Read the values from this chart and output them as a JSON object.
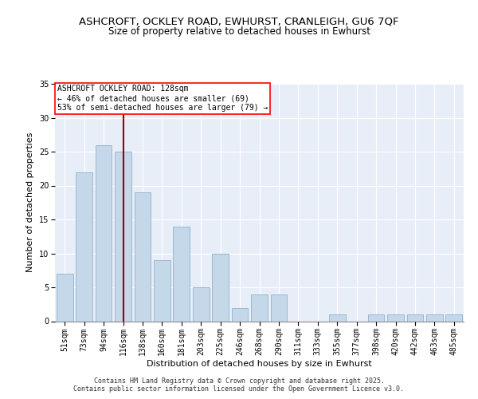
{
  "title1": "ASHCROFT, OCKLEY ROAD, EWHURST, CRANLEIGH, GU6 7QF",
  "title2": "Size of property relative to detached houses in Ewhurst",
  "xlabel": "Distribution of detached houses by size in Ewhurst",
  "ylabel": "Number of detached properties",
  "categories": [
    "51sqm",
    "73sqm",
    "94sqm",
    "116sqm",
    "138sqm",
    "160sqm",
    "181sqm",
    "203sqm",
    "225sqm",
    "246sqm",
    "268sqm",
    "290sqm",
    "311sqm",
    "333sqm",
    "355sqm",
    "377sqm",
    "398sqm",
    "420sqm",
    "442sqm",
    "463sqm",
    "485sqm"
  ],
  "values": [
    7,
    22,
    26,
    25,
    19,
    9,
    14,
    5,
    10,
    2,
    4,
    4,
    0,
    0,
    1,
    0,
    1,
    1,
    1,
    1,
    1
  ],
  "bar_color": "#c5d8ea",
  "bar_edge_color": "#9ab8d0",
  "annotation_text": "ASHCROFT OCKLEY ROAD: 128sqm\n← 46% of detached houses are smaller (69)\n53% of semi-detached houses are larger (79) →",
  "annotation_box_color": "white",
  "annotation_box_edge": "red",
  "ylim": [
    0,
    35
  ],
  "yticks": [
    0,
    5,
    10,
    15,
    20,
    25,
    30,
    35
  ],
  "background_color": "#e8eef8",
  "grid_color": "white",
  "footer": "Contains HM Land Registry data © Crown copyright and database right 2025.\nContains public sector information licensed under the Open Government Licence v3.0.",
  "title_fontsize": 9.5,
  "subtitle_fontsize": 8.5,
  "axis_label_fontsize": 8,
  "tick_fontsize": 7,
  "annotation_fontsize": 7,
  "footer_fontsize": 6
}
